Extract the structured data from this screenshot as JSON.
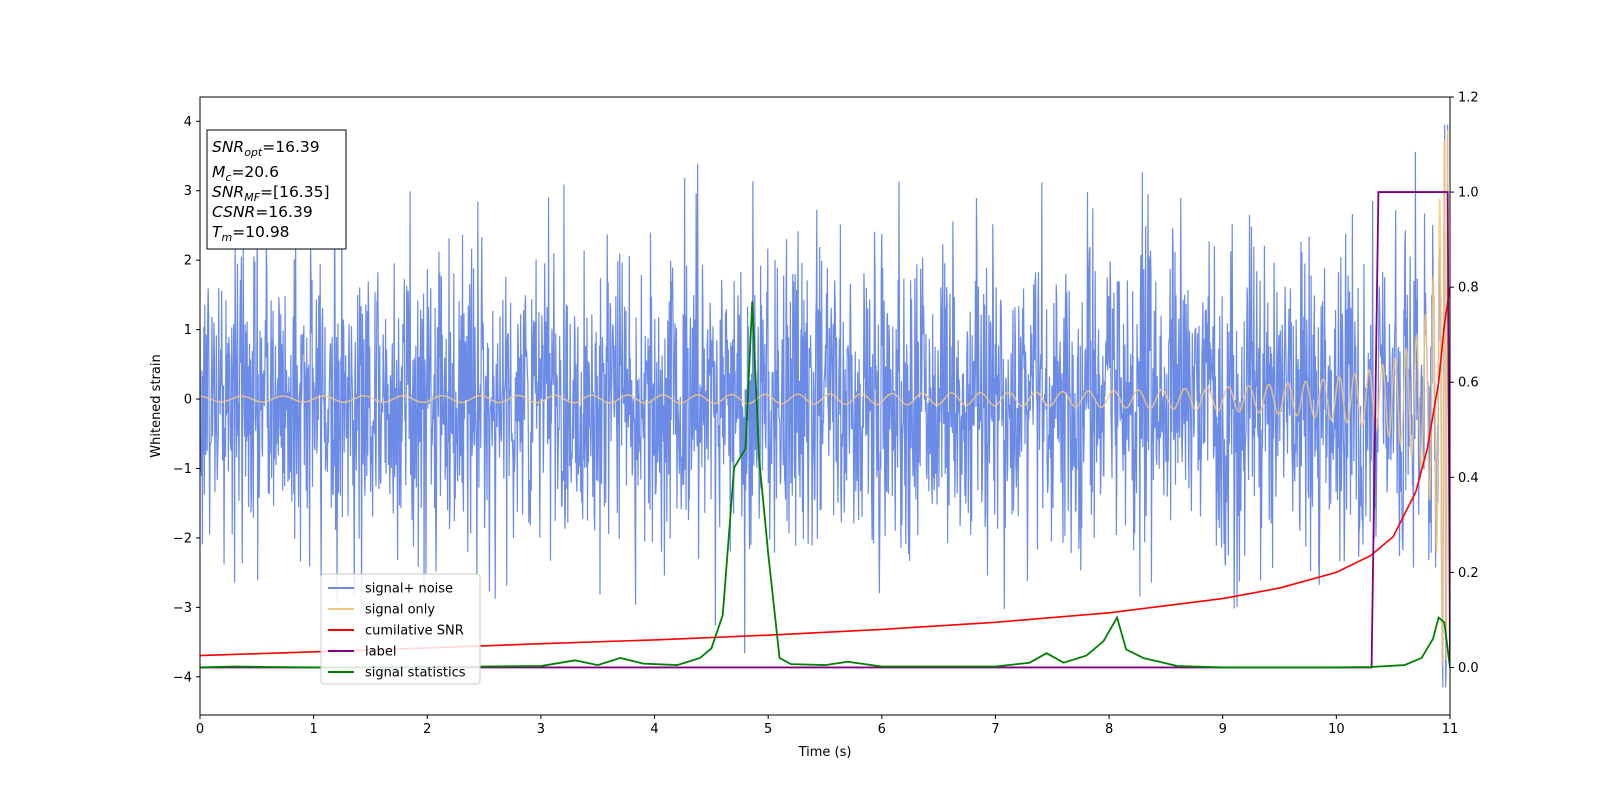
{
  "chart_data": {
    "type": "line",
    "xlabel": "Time (s)",
    "ylabel": "Whitened strain",
    "xlim": [
      0,
      11
    ],
    "ylim_left": [
      -4.55,
      4.35
    ],
    "ylim_right": [
      -0.1,
      1.2
    ],
    "x_ticks": [
      0,
      1,
      2,
      3,
      4,
      5,
      6,
      7,
      8,
      9,
      10,
      11
    ],
    "y_ticks_left": [
      -4,
      -3,
      -2,
      -1,
      0,
      1,
      2,
      3,
      4
    ],
    "y_ticks_right": [
      0.0,
      0.2,
      0.4,
      0.6,
      0.8,
      1.0,
      1.2
    ],
    "y_tick_labels_left": [
      "−4",
      "−3",
      "−2",
      "−1",
      "0",
      "1",
      "2",
      "3",
      "4"
    ],
    "y_tick_labels_right": [
      "0.0",
      "0.2",
      "0.4",
      "0.6",
      "0.8",
      "1.0",
      "1.2"
    ],
    "grid": false,
    "legend_placement": "lower-left",
    "series": [
      {
        "name": "signal+ noise",
        "axis": "left",
        "color": "#6b8be6",
        "kind": "gaussian-noise-plus-signal",
        "noise_std": 1.1,
        "range_observed": [
          -4.15,
          3.95
        ]
      },
      {
        "name": "signal only",
        "axis": "left",
        "color": "#f5c77e",
        "kind": "chirp",
        "amplitude_start": 0.04,
        "amplitude_end": 3.9,
        "merger_time": 10.98
      },
      {
        "name": "cumilative SNR",
        "axis": "right",
        "color": "#ff0000",
        "x": [
          0,
          1,
          2,
          3,
          4,
          5,
          6,
          7,
          8,
          9,
          9.5,
          10,
          10.3,
          10.5,
          10.7,
          10.8,
          10.9,
          10.95,
          11
        ],
        "y": [
          0.025,
          0.033,
          0.041,
          0.05,
          0.058,
          0.068,
          0.08,
          0.095,
          0.115,
          0.145,
          0.167,
          0.2,
          0.235,
          0.275,
          0.37,
          0.46,
          0.6,
          0.72,
          0.8
        ]
      },
      {
        "name": "label",
        "axis": "right",
        "color": "#800080",
        "x": [
          0,
          10.31,
          10.37,
          10.98,
          11
        ],
        "y": [
          0.0,
          0.0,
          1.0,
          1.0,
          0.0
        ]
      },
      {
        "name": "signal statistics",
        "axis": "right",
        "color": "#008000",
        "x": [
          0,
          0.3,
          0.6,
          1,
          2,
          2.5,
          3,
          3.3,
          3.5,
          3.7,
          3.9,
          4.2,
          4.4,
          4.5,
          4.6,
          4.7,
          4.8,
          4.86,
          4.92,
          5.0,
          5.1,
          5.2,
          5.5,
          5.7,
          6,
          7,
          7.3,
          7.45,
          7.6,
          7.8,
          7.95,
          8.07,
          8.15,
          8.3,
          8.6,
          9,
          10,
          10.3,
          10.6,
          10.75,
          10.85,
          10.9,
          10.95,
          11
        ],
        "y": [
          0.0,
          0.002,
          0.001,
          0.0,
          0.001,
          0.002,
          0.003,
          0.015,
          0.005,
          0.02,
          0.008,
          0.005,
          0.02,
          0.04,
          0.11,
          0.42,
          0.46,
          0.77,
          0.44,
          0.24,
          0.02,
          0.007,
          0.005,
          0.012,
          0.002,
          0.002,
          0.01,
          0.03,
          0.01,
          0.025,
          0.055,
          0.105,
          0.038,
          0.02,
          0.003,
          0.0,
          0.0,
          0.001,
          0.005,
          0.02,
          0.06,
          0.105,
          0.095,
          0.0
        ]
      }
    ],
    "annotation": {
      "lines": [
        {
          "var": "SNR",
          "sub": "opt",
          "value": "=16.39"
        },
        {
          "var": "M",
          "sub": "c",
          "value": "=20.6"
        },
        {
          "var": "SNR",
          "sub": "MF",
          "value": "=[16.35]"
        },
        {
          "var": "CSNR",
          "sub": "",
          "value": "=16.39"
        },
        {
          "var": "T",
          "sub": "m",
          "value": "=10.98"
        }
      ]
    }
  }
}
